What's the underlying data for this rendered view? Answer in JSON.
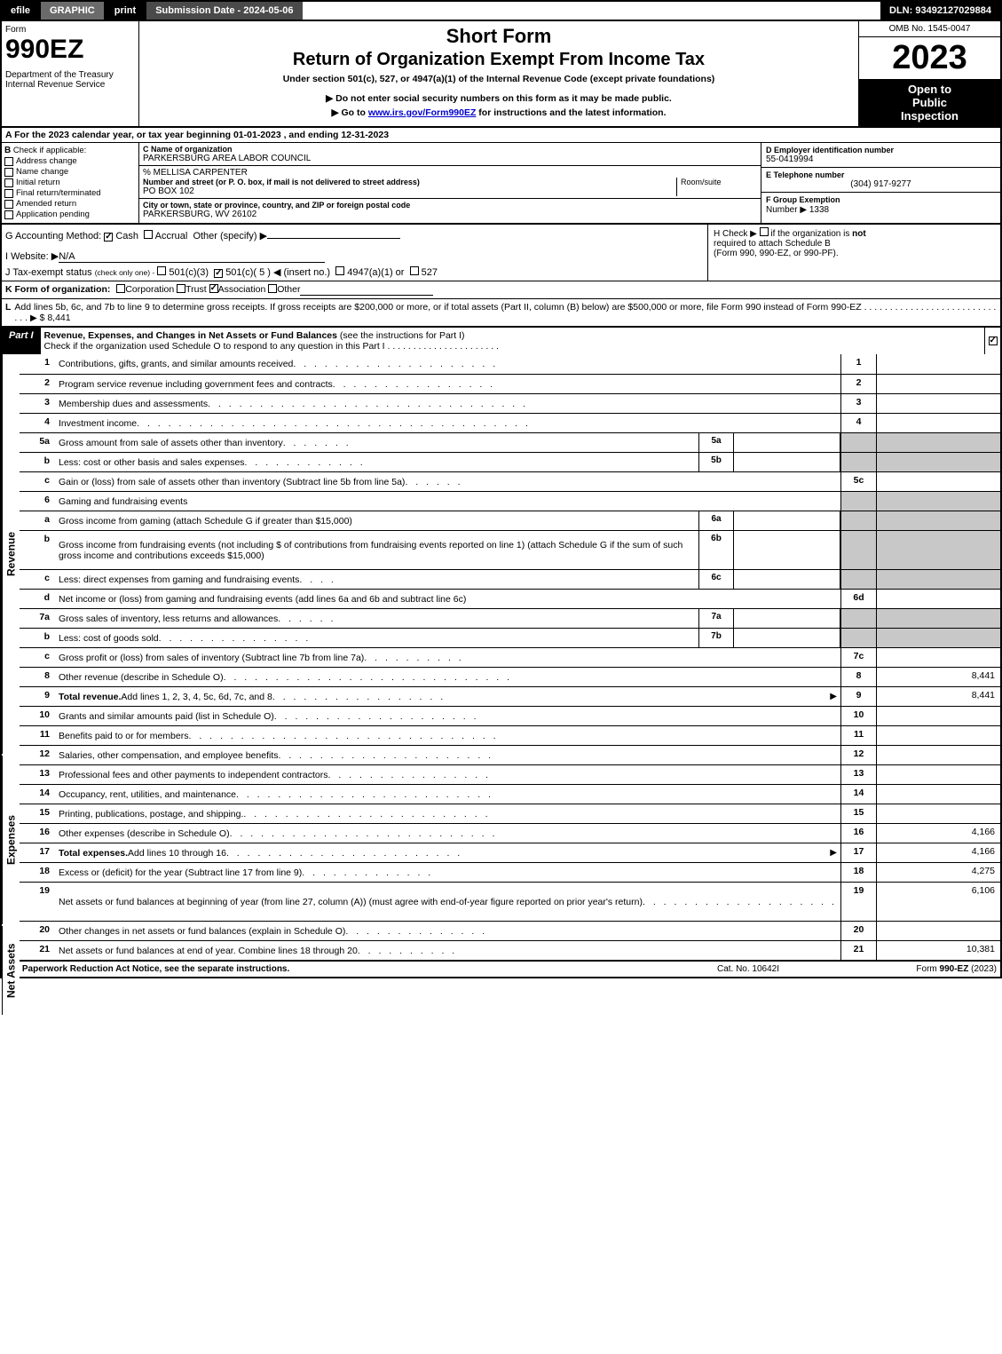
{
  "topbar": {
    "efile": "efile",
    "graphic": "GRAPHIC",
    "print": "print",
    "submission": "Submission Date - 2024-05-06",
    "dln": "DLN: 93492127029884"
  },
  "header": {
    "form_label": "Form",
    "form_num": "990EZ",
    "dept": "Department of the Treasury\nInternal Revenue Service",
    "short_form": "Short Form",
    "return_title": "Return of Organization Exempt From Income Tax",
    "subtitle": "Under section 501(c), 527, or 4947(a)(1) of the Internal Revenue Code (except private foundations)",
    "bullet1": "▶ Do not enter social security numbers on this form as it may be made public.",
    "bullet2_pre": "▶ Go to ",
    "bullet2_link": "www.irs.gov/Form990EZ",
    "bullet2_post": " for instructions and the latest information.",
    "omb": "OMB No. 1545-0047",
    "year": "2023",
    "inspect1": "Open to",
    "inspect2": "Public",
    "inspect3": "Inspection"
  },
  "sectionA": "A  For the 2023 calendar year, or tax year beginning 01-01-2023 , and ending 12-31-2023",
  "B": {
    "hdr": "B",
    "hdr_text": "Check if applicable:",
    "items": [
      "Address change",
      "Name change",
      "Initial return",
      "Final return/terminated",
      "Amended return",
      "Application pending"
    ]
  },
  "C": {
    "label": "C Name of organization",
    "org": "PARKERSBURG AREA LABOR COUNCIL",
    "care_of": "% MELLISA CARPENTER",
    "addr_label": "Number and street (or P. O. box, if mail is not delivered to street address)",
    "room_label": "Room/suite",
    "addr": "PO BOX 102",
    "city_label": "City or town, state or province, country, and ZIP or foreign postal code",
    "city": "PARKERSBURG, WV  26102"
  },
  "D": {
    "label": "D Employer identification number",
    "val": "55-0419994"
  },
  "E": {
    "label": "E Telephone number",
    "val": "(304) 917-9277"
  },
  "F": {
    "label": "F Group Exemption",
    "label2": "Number  ▶",
    "val": "1338"
  },
  "G": {
    "label": "G Accounting Method:",
    "cash": "Cash",
    "accrual": "Accrual",
    "other": "Other (specify) ▶"
  },
  "H": {
    "label": "H",
    "text1": "Check ▶",
    "text2": "if the organization is ",
    "not": "not",
    "text3": "required to attach Schedule B",
    "text4": "(Form 990, 990-EZ, or 990-PF)."
  },
  "I": {
    "label": "I Website: ▶",
    "val": "N/A"
  },
  "J": {
    "label": "J Tax-exempt status",
    "tiny": "(check only one) -",
    "opts": [
      "501(c)(3)",
      "501(c)( 5 ) ◀ (insert no.)",
      "4947(a)(1) or",
      "527"
    ]
  },
  "K": {
    "label": "K Form of organization:",
    "opts": [
      "Corporation",
      "Trust",
      "Association",
      "Other"
    ]
  },
  "L": {
    "label": "L",
    "text": "Add lines 5b, 6c, and 7b to line 9 to determine gross receipts. If gross receipts are $200,000 or more, or if total assets (Part II, column (B) below) are $500,000 or more, file Form 990 instead of Form 990-EZ",
    "dots": ". . . . . . . . . . . . . . . . . . . . . . . . . . . . .",
    "arrow": "▶",
    "val": "$ 8,441"
  },
  "partI": {
    "label": "Part I",
    "title": "Revenue, Expenses, and Changes in Net Assets or Fund Balances",
    "note": "(see the instructions for Part I)",
    "subline": "Check if the organization used Schedule O to respond to any question in this Part I",
    "subdots": ". . . . . . . . . . . . . . . . . . . . . ."
  },
  "vert": {
    "revenue": "Revenue",
    "expenses": "Expenses",
    "netassets": "Net Assets"
  },
  "rows": [
    {
      "n": "1",
      "d": "Contributions, gifts, grants, and similar amounts received",
      "dots": ". . . . . . . . . . . . . . . . . . . .",
      "rn": "1",
      "rv": ""
    },
    {
      "n": "2",
      "d": "Program service revenue including government fees and contracts",
      "dots": ". . . . . . . . . . . . . . . .",
      "rn": "2",
      "rv": ""
    },
    {
      "n": "3",
      "d": "Membership dues and assessments",
      "dots": ". . . . . . . . . . . . . . . . . . . . . . . . . . . . . . .",
      "rn": "3",
      "rv": ""
    },
    {
      "n": "4",
      "d": "Investment income",
      "dots": ". . . . . . . . . . . . . . . . . . . . . . . . . . . . . . . . . . . . . .",
      "rn": "4",
      "rv": ""
    },
    {
      "n": "5a",
      "d": "Gross amount from sale of assets other than inventory",
      "dots": ". . . . . . .",
      "sub": "5a",
      "sv": "",
      "shaded": true
    },
    {
      "n": "b",
      "d": "Less: cost or other basis and sales expenses",
      "dots": ". . . . . . . . . . . .",
      "sub": "5b",
      "sv": "",
      "shaded": true
    },
    {
      "n": "c",
      "d": "Gain or (loss) from sale of assets other than inventory (Subtract line 5b from line 5a)",
      "dots": ". . . . . .",
      "rn": "5c",
      "rv": ""
    },
    {
      "n": "6",
      "d": "Gaming and fundraising events",
      "dots": "",
      "shaded": true,
      "noval": true
    },
    {
      "n": "a",
      "d": "Gross income from gaming (attach Schedule G if greater than $15,000)",
      "dots": "",
      "sub": "6a",
      "sv": "",
      "shaded": true
    },
    {
      "n": "b",
      "d": "Gross income from fundraising events (not including $                         of contributions from fundraising events reported on line 1) (attach Schedule G if the sum of such gross income and contributions exceeds $15,000)",
      "dots": ". .",
      "sub": "6b",
      "sv": "",
      "shaded": true,
      "tall": true
    },
    {
      "n": "c",
      "d": "Less: direct expenses from gaming and fundraising events",
      "dots": ". . . .",
      "sub": "6c",
      "sv": "",
      "shaded": true
    },
    {
      "n": "d",
      "d": "Net income or (loss) from gaming and fundraising events (add lines 6a and 6b and subtract line 6c)",
      "dots": "",
      "rn": "6d",
      "rv": ""
    },
    {
      "n": "7a",
      "d": "Gross sales of inventory, less returns and allowances",
      "dots": ". . . . . .",
      "sub": "7a",
      "sv": "",
      "shaded": true
    },
    {
      "n": "b",
      "d": "Less: cost of goods sold",
      "dots": ". . . . . . . . . . . . . . .",
      "sub": "7b",
      "sv": "",
      "shaded": true
    },
    {
      "n": "c",
      "d": "Gross profit or (loss) from sales of inventory (Subtract line 7b from line 7a)",
      "dots": ". . . . . . . . . .",
      "rn": "7c",
      "rv": ""
    },
    {
      "n": "8",
      "d": "Other revenue (describe in Schedule O)",
      "dots": ". . . . . . . . . . . . . . . . . . . . . . . . . . . .",
      "rn": "8",
      "rv": "8,441"
    },
    {
      "n": "9",
      "d_bold": "Total revenue.",
      "d": " Add lines 1, 2, 3, 4, 5c, 6d, 7c, and 8",
      "dots": ". . . . . . . . . . . . . . . . .",
      "arrow": "▶",
      "rn": "9",
      "rv": "8,441"
    },
    {
      "n": "10",
      "d": "Grants and similar amounts paid (list in Schedule O)",
      "dots": ". . . . . . . . . . . . . . . . . . . .",
      "rn": "10",
      "rv": ""
    },
    {
      "n": "11",
      "d": "Benefits paid to or for members",
      "dots": ". . . . . . . . . . . . . . . . . . . . . . . . . . . . . .",
      "rn": "11",
      "rv": ""
    },
    {
      "n": "12",
      "d": "Salaries, other compensation, and employee benefits",
      "dots": ". . . . . . . . . . . . . . . . . . . . .",
      "rn": "12",
      "rv": ""
    },
    {
      "n": "13",
      "d": "Professional fees and other payments to independent contractors",
      "dots": ". . . . . . . . . . . . . . . .",
      "rn": "13",
      "rv": ""
    },
    {
      "n": "14",
      "d": "Occupancy, rent, utilities, and maintenance",
      "dots": ". . . . . . . . . . . . . . . . . . . . . . . . .",
      "rn": "14",
      "rv": ""
    },
    {
      "n": "15",
      "d": "Printing, publications, postage, and shipping.",
      "dots": ". . . . . . . . . . . . . . . . . . . . . . . .",
      "rn": "15",
      "rv": ""
    },
    {
      "n": "16",
      "d": "Other expenses (describe in Schedule O)",
      "dots": ". . . . . . . . . . . . . . . . . . . . . . . . . .",
      "rn": "16",
      "rv": "4,166"
    },
    {
      "n": "17",
      "d_bold": "Total expenses.",
      "d": " Add lines 10 through 16",
      "dots": ". . . . . . . . . . . . . . . . . . . . . . .",
      "arrow": "▶",
      "rn": "17",
      "rv": "4,166"
    },
    {
      "n": "18",
      "d": "Excess or (deficit) for the year (Subtract line 17 from line 9)",
      "dots": ". . . . . . . . . . . . .",
      "rn": "18",
      "rv": "4,275"
    },
    {
      "n": "19",
      "d": "Net assets or fund balances at beginning of year (from line 27, column (A)) (must agree with end-of-year figure reported on prior year's return)",
      "dots": ". . . . . . . . . . . . . . . . . . . . . . . .",
      "rn": "19",
      "rv": "6,106",
      "tall": true
    },
    {
      "n": "20",
      "d": "Other changes in net assets or fund balances (explain in Schedule O)",
      "dots": ". . . . . . . . . . . . . .",
      "rn": "20",
      "rv": ""
    },
    {
      "n": "21",
      "d": "Net assets or fund balances at end of year. Combine lines 18 through 20",
      "dots": ". . . . . . . . . .",
      "rn": "21",
      "rv": "10,381"
    }
  ],
  "footer": {
    "l": "For Paperwork Reduction Act Notice, see the separate instructions.",
    "c": "Cat. No. 10642I",
    "r_pre": "Form ",
    "r_bold": "990-EZ",
    "r_post": " (2023)"
  },
  "colors": {
    "black": "#000000",
    "white": "#ffffff",
    "shade": "#c8c8c8",
    "darkgray": "#4a4a4a",
    "midgray": "#6b6b6b",
    "link": "#0000cc"
  }
}
